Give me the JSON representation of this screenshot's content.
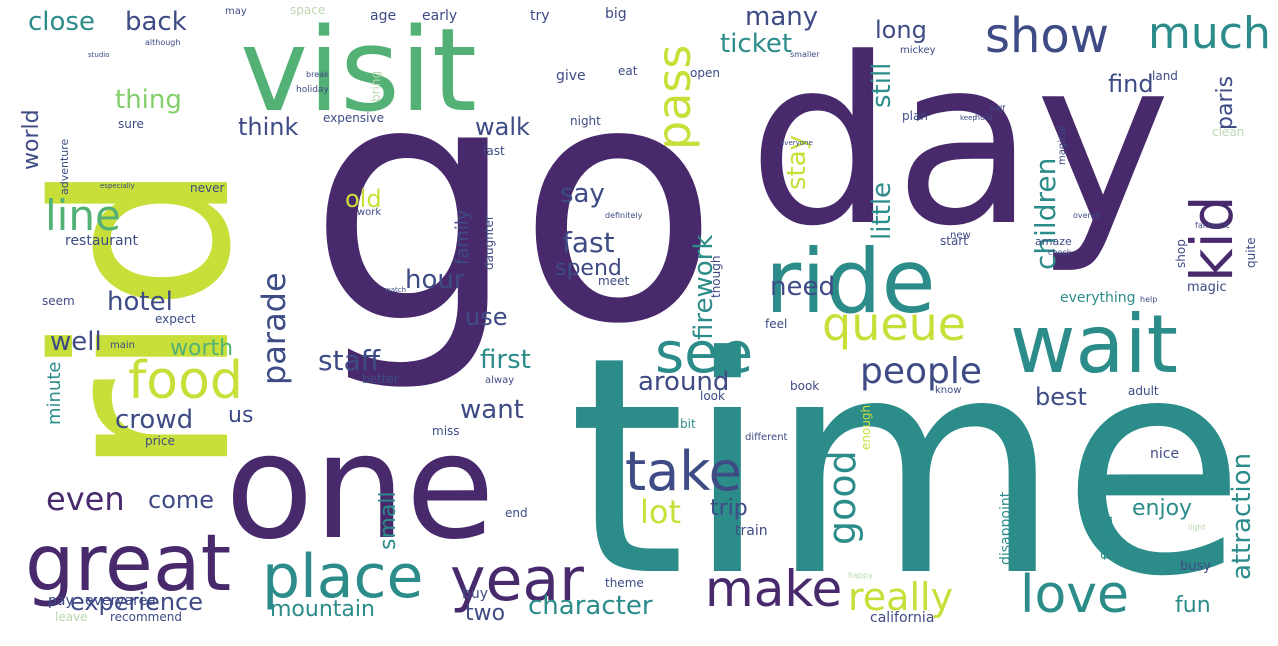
{
  "palette": {
    "dark_purple": "#482a6c",
    "purple": "#55307a",
    "slate": "#3e4b85",
    "teal": "#2b8c8a",
    "dark_teal": "#26737c",
    "green": "#53b176",
    "light_green": "#83cf6c",
    "lime": "#c8df3a",
    "yellow": "#e3e62a",
    "pale": "#bcd7b0",
    "faint": "#c9dcc3",
    "background": "#ffffff"
  },
  "words": [
    {
      "text": "go",
      "color": "dark_purple"
    },
    {
      "text": "time",
      "color": "teal"
    },
    {
      "text": "day",
      "color": "dark_purple"
    },
    {
      "text": "rid",
      "color": "lime"
    },
    {
      "text": "one",
      "color": "dark_purple"
    },
    {
      "text": "visit",
      "color": "green"
    },
    {
      "text": "ride",
      "color": "teal"
    },
    {
      "text": "wait",
      "color": "teal"
    },
    {
      "text": "great",
      "color": "dark_purple"
    },
    {
      "text": "place",
      "color": "teal"
    },
    {
      "text": "year",
      "color": "dark_purple"
    },
    {
      "text": "see",
      "color": "teal"
    },
    {
      "text": "take",
      "color": "slate"
    },
    {
      "text": "food",
      "color": "lime"
    },
    {
      "text": "love",
      "color": "teal"
    },
    {
      "text": "make",
      "color": "dark_purple"
    },
    {
      "text": "queue",
      "color": "lime"
    },
    {
      "text": "kid",
      "color": "dark_purple"
    },
    {
      "text": "show",
      "color": "slate"
    },
    {
      "text": "much",
      "color": "teal"
    },
    {
      "text": "pass",
      "color": "lime"
    },
    {
      "text": "line",
      "color": "green"
    },
    {
      "text": "good",
      "color": "teal"
    },
    {
      "text": "people",
      "color": "slate"
    },
    {
      "text": "really",
      "color": "lime"
    },
    {
      "text": "lot",
      "color": "lime"
    },
    {
      "text": "even",
      "color": "dark_purple"
    },
    {
      "text": "parade",
      "color": "slate"
    },
    {
      "text": "staff",
      "color": "slate"
    },
    {
      "text": "character",
      "color": "teal"
    },
    {
      "text": "experience",
      "color": "slate"
    },
    {
      "text": "mountain",
      "color": "teal"
    },
    {
      "text": "ticket",
      "color": "teal"
    },
    {
      "text": "many",
      "color": "slate"
    },
    {
      "text": "hotel",
      "color": "slate"
    },
    {
      "text": "well",
      "color": "slate"
    },
    {
      "text": "crowd",
      "color": "slate"
    },
    {
      "text": "fast",
      "color": "slate"
    },
    {
      "text": "first",
      "color": "teal"
    },
    {
      "text": "around",
      "color": "slate"
    },
    {
      "text": "hour",
      "color": "slate"
    },
    {
      "text": "need",
      "color": "slate"
    },
    {
      "text": "want",
      "color": "slate"
    },
    {
      "text": "old",
      "color": "lime"
    },
    {
      "text": "say",
      "color": "slate"
    },
    {
      "text": "walk",
      "color": "slate"
    },
    {
      "text": "use",
      "color": "slate"
    },
    {
      "text": "worth",
      "color": "green"
    },
    {
      "text": "come",
      "color": "slate"
    },
    {
      "text": "us",
      "color": "slate"
    },
    {
      "text": "spend",
      "color": "slate"
    },
    {
      "text": "thing",
      "color": "light_green"
    },
    {
      "text": "think",
      "color": "slate"
    },
    {
      "text": "close",
      "color": "teal"
    },
    {
      "text": "back",
      "color": "slate"
    },
    {
      "text": "long",
      "color": "slate"
    },
    {
      "text": "find",
      "color": "slate"
    },
    {
      "text": "children",
      "color": "teal"
    },
    {
      "text": "little",
      "color": "teal"
    },
    {
      "text": "still",
      "color": "teal"
    },
    {
      "text": "stay",
      "color": "lime"
    },
    {
      "text": "firework",
      "color": "teal"
    },
    {
      "text": "best",
      "color": "slate"
    },
    {
      "text": "attraction",
      "color": "teal"
    },
    {
      "text": "trip",
      "color": "slate"
    },
    {
      "text": "enjoy",
      "color": "teal"
    },
    {
      "text": "fun",
      "color": "teal"
    },
    {
      "text": "two",
      "color": "slate"
    },
    {
      "text": "small",
      "color": "teal"
    },
    {
      "text": "paris",
      "color": "slate"
    },
    {
      "text": "world",
      "color": "slate"
    },
    {
      "text": "minute",
      "color": "teal"
    },
    {
      "text": "family",
      "color": "slate"
    },
    {
      "text": "restaurant",
      "color": "slate"
    },
    {
      "text": "everything",
      "color": "teal"
    },
    {
      "text": "magic",
      "color": "slate"
    },
    {
      "text": "nice",
      "color": "slate"
    },
    {
      "text": "busy",
      "color": "slate"
    },
    {
      "text": "florida",
      "color": "teal"
    },
    {
      "text": "california",
      "color": "slate"
    },
    {
      "text": "pay",
      "color": "slate"
    },
    {
      "text": "everyarea",
      "color": "slate"
    },
    {
      "text": "leave",
      "color": "pale"
    },
    {
      "text": "recommend",
      "color": "slate"
    },
    {
      "text": "buy",
      "color": "slate"
    },
    {
      "text": "end",
      "color": "slate"
    },
    {
      "text": "train",
      "color": "slate"
    },
    {
      "text": "theme",
      "color": "slate"
    },
    {
      "text": "price",
      "color": "slate"
    },
    {
      "text": "miss",
      "color": "slate"
    },
    {
      "text": "look",
      "color": "slate"
    },
    {
      "text": "book",
      "color": "slate"
    },
    {
      "text": "better",
      "color": "slate"
    },
    {
      "text": "alway",
      "color": "slate"
    },
    {
      "text": "feel",
      "color": "slate"
    },
    {
      "text": "know",
      "color": "slate"
    },
    {
      "text": "adult",
      "color": "slate"
    },
    {
      "text": "expect",
      "color": "slate"
    },
    {
      "text": "seem",
      "color": "slate"
    },
    {
      "text": "main",
      "color": "slate"
    },
    {
      "text": "never",
      "color": "slate"
    },
    {
      "text": "adventure",
      "color": "slate"
    },
    {
      "text": "expensive",
      "color": "slate"
    },
    {
      "text": "night",
      "color": "slate"
    },
    {
      "text": "last",
      "color": "slate"
    },
    {
      "text": "sure",
      "color": "slate"
    },
    {
      "text": "give",
      "color": "slate"
    },
    {
      "text": "open",
      "color": "slate"
    },
    {
      "text": "eat",
      "color": "slate"
    },
    {
      "text": "land",
      "color": "slate"
    },
    {
      "text": "clean",
      "color": "pale"
    },
    {
      "text": "plan",
      "color": "slate"
    },
    {
      "text": "though",
      "color": "slate"
    },
    {
      "text": "start",
      "color": "slate"
    },
    {
      "text": "amaze",
      "color": "slate"
    },
    {
      "text": "shop",
      "color": "slate"
    },
    {
      "text": "quite",
      "color": "slate"
    },
    {
      "text": "magical",
      "color": "slate"
    },
    {
      "text": "daughter",
      "color": "slate"
    },
    {
      "text": "meet",
      "color": "slate"
    },
    {
      "text": "enough",
      "color": "lime"
    },
    {
      "text": "disappoint",
      "color": "teal"
    },
    {
      "text": "different",
      "color": "slate"
    },
    {
      "text": "bit",
      "color": "teal"
    },
    {
      "text": "may",
      "color": "slate"
    },
    {
      "text": "space",
      "color": "pale"
    },
    {
      "text": "age",
      "color": "slate"
    },
    {
      "text": "early",
      "color": "slate"
    },
    {
      "text": "try",
      "color": "slate"
    },
    {
      "text": "big",
      "color": "slate"
    },
    {
      "text": "mickey",
      "color": "slate"
    },
    {
      "text": "smaller",
      "color": "slate"
    },
    {
      "text": "new",
      "color": "slate"
    },
    {
      "text": "holiday",
      "color": "slate"
    },
    {
      "text": "break",
      "color": "slate"
    },
    {
      "text": "bring",
      "color": "pale"
    },
    {
      "text": "although",
      "color": "slate"
    },
    {
      "text": "studio",
      "color": "slate"
    },
    {
      "text": "definitely",
      "color": "slate"
    },
    {
      "text": "work",
      "color": "slate"
    },
    {
      "text": "especially",
      "color": "slate"
    },
    {
      "text": "fantastic",
      "color": "slate"
    },
    {
      "text": "overall",
      "color": "slate"
    },
    {
      "text": "help",
      "color": "slate"
    },
    {
      "text": "check",
      "color": "slate"
    },
    {
      "text": "happy",
      "color": "pale"
    },
    {
      "text": "light",
      "color": "pale"
    },
    {
      "text": "everyone",
      "color": "slate"
    },
    {
      "text": "watch",
      "color": "slate"
    },
    {
      "text": "hold",
      "color": "slate"
    },
    {
      "text": "half",
      "color": "slate"
    },
    {
      "text": "keep",
      "color": "slate"
    }
  ]
}
